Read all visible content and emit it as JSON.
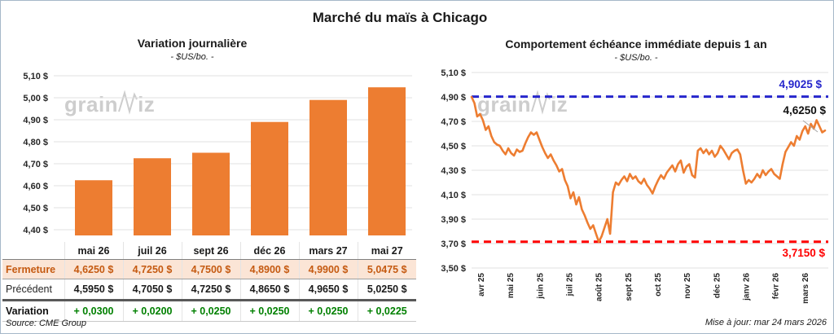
{
  "page_title": "Marché du maïs à Chicago",
  "brand_watermark": {
    "pre": "grain",
    "post": "iz"
  },
  "left_panel": {
    "title": "Variation journalière",
    "subtitle": "- $US/bo. -",
    "source_note": "Source: CME Group"
  },
  "right_panel": {
    "title": "Comportement échéance immédiate depuis 1 an",
    "subtitle": "- $US/bo. -",
    "update_note": "Mise à jour: mar 24 mars 2026",
    "high_label": "4,9025 $",
    "last_label": "4,6250 $",
    "low_label": "3,7150 $"
  },
  "table": {
    "columns": [
      "mai 26",
      "juil 26",
      "sept 26",
      "déc 26",
      "mars 27",
      "mai 27"
    ],
    "rows": [
      {
        "label": "Fermeture",
        "style": "fermeture",
        "values": [
          "4,6250 $",
          "4,7250 $",
          "4,7500 $",
          "4,8900 $",
          "4,9900 $",
          "5,0475 $"
        ]
      },
      {
        "label": "Précédent",
        "style": "precedent",
        "values": [
          "4,5950 $",
          "4,7050 $",
          "4,7250 $",
          "4,8650 $",
          "4,9650 $",
          "5,0250 $"
        ]
      },
      {
        "label": "Variation",
        "style": "variation",
        "values": [
          "+ 0,0300",
          "+ 0,0200",
          "+ 0,0250",
          "+ 0,0250",
          "+ 0,0250",
          "+ 0,0225"
        ]
      }
    ]
  },
  "colors": {
    "accent_orange": "#ED7D31",
    "fermeture_bg": "#FBE5D6",
    "fermeture_text": "#C55A11",
    "positive_green": "#008000",
    "ref_blue": "#2626CC",
    "ref_red": "#FF0000",
    "grid": "#E0E0E0",
    "axis_text": "#262626",
    "watermark": "#CDCDCD"
  },
  "chart_data": [
    {
      "type": "bar",
      "title": "Variation journalière",
      "subtitle": "- $US/bo. -",
      "categories": [
        "mai 26",
        "juil 26",
        "sept 26",
        "déc 26",
        "mars 27",
        "mai 27"
      ],
      "values": [
        4.625,
        4.725,
        4.75,
        4.89,
        4.99,
        5.0475
      ],
      "ylabel": "$US/bo.",
      "ylim": [
        4.35,
        5.1
      ],
      "yticks": [
        5.1,
        5.0,
        4.9,
        4.8,
        4.7,
        4.6,
        4.5,
        4.4
      ],
      "ytick_labels": [
        "5,10 $",
        "5,00 $",
        "4,90 $",
        "4,80 $",
        "4,70 $",
        "4,60 $",
        "4,50 $",
        "4,40 $"
      ],
      "grid": true,
      "bar_color": "#ED7D31"
    },
    {
      "type": "line",
      "title": "Comportement échéance immédiate depuis 1 an",
      "subtitle": "- $US/bo. -",
      "x_categories": [
        "avr 25",
        "mai 25",
        "juin 25",
        "juil 25",
        "août 25",
        "sept 25",
        "oct 25",
        "nov 25",
        "déc 25",
        "janv 26",
        "févr 26",
        "mars 26"
      ],
      "values": [
        4.9,
        4.85,
        4.74,
        4.76,
        4.71,
        4.63,
        4.66,
        4.58,
        4.53,
        4.51,
        4.5,
        4.46,
        4.43,
        4.48,
        4.44,
        4.42,
        4.47,
        4.45,
        4.46,
        4.52,
        4.57,
        4.61,
        4.59,
        4.61,
        4.55,
        4.49,
        4.44,
        4.4,
        4.43,
        4.38,
        4.34,
        4.29,
        4.31,
        4.22,
        4.17,
        4.07,
        4.12,
        4.02,
        4.08,
        3.98,
        3.93,
        3.87,
        3.82,
        3.85,
        3.78,
        3.715,
        3.76,
        3.83,
        3.9,
        3.78,
        4.12,
        4.2,
        4.18,
        4.22,
        4.25,
        4.21,
        4.27,
        4.23,
        4.25,
        4.21,
        4.19,
        4.23,
        4.18,
        4.15,
        4.11,
        4.17,
        4.22,
        4.26,
        4.23,
        4.28,
        4.31,
        4.34,
        4.29,
        4.35,
        4.38,
        4.28,
        4.33,
        4.35,
        4.26,
        4.24,
        4.46,
        4.48,
        4.44,
        4.47,
        4.43,
        4.46,
        4.41,
        4.44,
        4.5,
        4.47,
        4.43,
        4.39,
        4.44,
        4.46,
        4.47,
        4.43,
        4.3,
        4.19,
        4.22,
        4.2,
        4.23,
        4.27,
        4.24,
        4.3,
        4.26,
        4.29,
        4.31,
        4.27,
        4.25,
        4.23,
        4.35,
        4.45,
        4.49,
        4.53,
        4.5,
        4.58,
        4.55,
        4.62,
        4.66,
        4.6,
        4.68,
        4.64,
        4.71,
        4.66,
        4.61,
        4.625
      ],
      "ylabel": "$US/bo.",
      "ylim": [
        3.5,
        5.1
      ],
      "yticks": [
        5.1,
        4.9,
        4.7,
        4.5,
        4.3,
        4.1,
        3.9,
        3.7,
        3.5
      ],
      "ytick_labels": [
        "5,10 $",
        "4,90 $",
        "4,70 $",
        "4,50 $",
        "4,30 $",
        "4,10 $",
        "3,90 $",
        "3,70 $",
        "3,50 $"
      ],
      "grid": true,
      "line_color": "#ED7D31",
      "last_value": 4.625,
      "last_label": "4,6250 $",
      "ref_lines": [
        {
          "value": 4.9025,
          "label": "4,9025 $",
          "color": "#2626CC",
          "style": "dashed"
        },
        {
          "value": 3.715,
          "label": "3,7150 $",
          "color": "#FF0000",
          "style": "dashed"
        }
      ]
    }
  ]
}
